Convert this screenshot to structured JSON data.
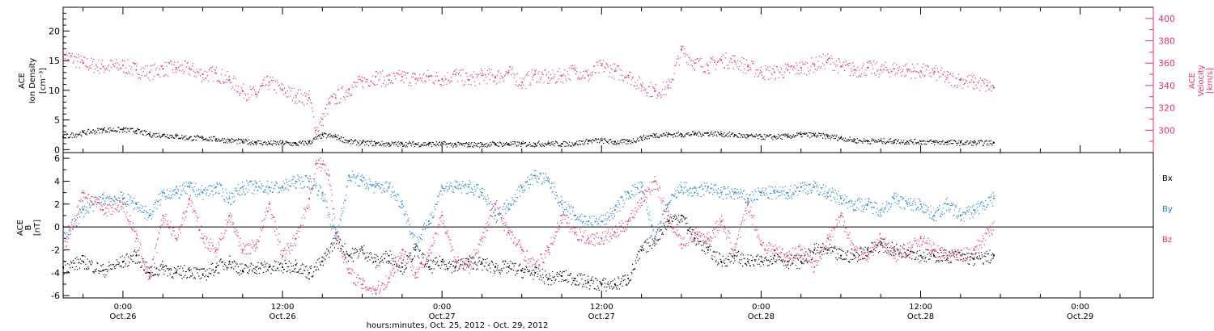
{
  "figure": {
    "xlabel": "hours:minutes, Oct. 25, 2012 - Oct. 29, 2012",
    "time_range_hours": [
      -4.5,
      77.5
    ]
  },
  "x_ticks": [
    {
      "hours": 0,
      "time": "0:00",
      "date": "Oct.26"
    },
    {
      "hours": 12,
      "time": "12:00",
      "date": "Oct.26"
    },
    {
      "hours": 24,
      "time": "0:00",
      "date": "Oct.27"
    },
    {
      "hours": 36,
      "time": "12:00",
      "date": "Oct.27"
    },
    {
      "hours": 48,
      "time": "0:00",
      "date": "Oct.28"
    },
    {
      "hours": 60,
      "time": "12:00",
      "date": "Oct.28"
    },
    {
      "hours": 72,
      "time": "0:00",
      "date": "Oct.29"
    }
  ],
  "chart_data": [
    {
      "type": "scatter",
      "panel": "plasma",
      "ylabel_left": [
        "ACE",
        "Ion Density",
        "[cm⁻³]"
      ],
      "ylabel_right": [
        "ACE",
        "Velocity",
        "[km/s]"
      ],
      "ylim_left": [
        -0.5,
        24
      ],
      "ylim_right": [
        280,
        410
      ],
      "yticks_left": [
        0,
        5,
        10,
        15,
        20
      ],
      "yticks_right": [
        300,
        320,
        340,
        360,
        380,
        400
      ],
      "series": [
        {
          "axis": "right",
          "color": "#e8336b",
          "x": [
            -4.5,
            -3,
            -1.5,
            0,
            1,
            2,
            3,
            4,
            5,
            6,
            7,
            8,
            9,
            10,
            10.5,
            11,
            12,
            13,
            14,
            14.5,
            15,
            15.5,
            16,
            17,
            18,
            19,
            20,
            21,
            22,
            23,
            24,
            25,
            26,
            27,
            28,
            29,
            30,
            31,
            32,
            33,
            34,
            35,
            36,
            37,
            38,
            39,
            40,
            41,
            42,
            43,
            44,
            45,
            46,
            47,
            48,
            49,
            50,
            51,
            52,
            53,
            54,
            55,
            56,
            57,
            58,
            59,
            60,
            61,
            62,
            63,
            64,
            65,
            65.5
          ],
          "y": [
            368,
            360,
            357,
            358,
            354,
            352,
            355,
            356,
            355,
            350,
            351,
            345,
            335,
            332,
            340,
            343,
            336,
            331,
            329,
            300,
            310,
            325,
            329,
            337,
            344,
            348,
            345,
            348,
            346,
            348,
            346,
            350,
            345,
            349,
            348,
            352,
            343,
            350,
            347,
            349,
            354,
            349,
            358,
            353,
            349,
            340,
            335,
            338,
            372,
            360,
            358,
            363,
            362,
            357,
            352,
            352,
            354,
            356,
            359,
            363,
            357,
            354,
            356,
            354,
            355,
            354,
            353,
            352,
            347,
            345,
            343,
            340,
            338
          ]
        },
        {
          "axis": "left",
          "color": "#000000",
          "x": [
            -4.5,
            -3,
            -1.5,
            0,
            1,
            2,
            3,
            4,
            5,
            6,
            7,
            8,
            9,
            10,
            11,
            12,
            13,
            14,
            15,
            16,
            17,
            18,
            19,
            20,
            21,
            22,
            23,
            24,
            25,
            26,
            27,
            28,
            29,
            30,
            31,
            32,
            33,
            34,
            35,
            36,
            37,
            38,
            39,
            40,
            41,
            42,
            43,
            44,
            45,
            46,
            47,
            48,
            49,
            50,
            51,
            52,
            53,
            54,
            55,
            56,
            57,
            58,
            59,
            60,
            61,
            62,
            63,
            64,
            65.5
          ],
          "y": [
            2.2,
            2.9,
            3.4,
            3.4,
            3.2,
            2.6,
            2.5,
            2.3,
            2.0,
            2.0,
            1.8,
            1.6,
            1.4,
            1.3,
            1.1,
            1.2,
            1.0,
            1.3,
            2.5,
            2.2,
            1.4,
            1.2,
            1.1,
            1.0,
            1.0,
            1.0,
            1.0,
            1.0,
            0.9,
            0.9,
            0.9,
            1.0,
            1.0,
            1.0,
            1.0,
            1.1,
            1.0,
            1.1,
            1.5,
            1.6,
            1.3,
            1.4,
            2.0,
            2.5,
            2.6,
            2.6,
            2.7,
            2.8,
            2.7,
            2.5,
            2.3,
            2.2,
            2.2,
            2.3,
            2.6,
            2.5,
            2.3,
            2.0,
            1.6,
            1.5,
            1.5,
            1.5,
            1.4,
            1.4,
            1.3,
            1.3,
            1.2,
            1.2,
            1.2
          ]
        }
      ]
    },
    {
      "type": "scatter",
      "panel": "magnetic",
      "ylabel_left": [
        "ACE",
        "B",
        "[nT]"
      ],
      "ylim": [
        -6.2,
        6.5
      ],
      "yticks": [
        -6,
        -4,
        -2,
        0,
        2,
        4,
        6
      ],
      "zero_line": true,
      "series": [
        {
          "name": "Bx",
          "color": "#000000",
          "x": [
            -4.5,
            -3,
            -1.5,
            0,
            1,
            2,
            3,
            4,
            5,
            6,
            7,
            8,
            9,
            10,
            11,
            12,
            13,
            14,
            15,
            16,
            17,
            18,
            19,
            20,
            21,
            22,
            23,
            24,
            25,
            26,
            27,
            28,
            29,
            30,
            31,
            32,
            33,
            34,
            35,
            36,
            37,
            38,
            39,
            40,
            41,
            42,
            43,
            44,
            45,
            46,
            47,
            48,
            49,
            50,
            51,
            52,
            53,
            54,
            55,
            56,
            57,
            58,
            59,
            60,
            61,
            62,
            63,
            64,
            65.5
          ],
          "y": [
            -3.5,
            -3.0,
            -3.8,
            -3.0,
            -2.5,
            -4.0,
            -3.5,
            -4.0,
            -3.8,
            -4.2,
            -3.5,
            -3.0,
            -3.8,
            -3.5,
            -3.5,
            -3.5,
            -3.3,
            -4.0,
            -3.0,
            -1.0,
            -2.5,
            -2.0,
            -3.0,
            -2.5,
            -3.5,
            -2.0,
            -3.5,
            -3.0,
            -3.5,
            -3.0,
            -3.2,
            -3.5,
            -3.5,
            -3.8,
            -4.0,
            -4.5,
            -4.3,
            -4.5,
            -4.8,
            -5.0,
            -5.0,
            -4.5,
            -2.0,
            -1.0,
            0.5,
            1.0,
            -1.0,
            -2.0,
            -3.0,
            -2.5,
            -3.0,
            -3.0,
            -2.5,
            -3.0,
            -3.0,
            -2.0,
            -2.0,
            -2.5,
            -2.5,
            -2.0,
            -1.5,
            -2.0,
            -2.0,
            -2.5,
            -2.5,
            -2.5,
            -2.5,
            -2.8,
            -2.5
          ]
        },
        {
          "name": "By",
          "color": "#1a7fd9",
          "x": [
            -4.5,
            -3,
            -1.5,
            0,
            1,
            2,
            3,
            4,
            5,
            6,
            7,
            8,
            9,
            10,
            11,
            12,
            13,
            14,
            15,
            16,
            17,
            18,
            19,
            20,
            21,
            22,
            23,
            24,
            25,
            26,
            27,
            28,
            29,
            30,
            31,
            32,
            33,
            34,
            35,
            36,
            37,
            38,
            39,
            40,
            41,
            42,
            43,
            44,
            45,
            46,
            47,
            48,
            49,
            50,
            51,
            52,
            53,
            54,
            55,
            56,
            57,
            58,
            59,
            60,
            61,
            62,
            63,
            64,
            65.5
          ],
          "y": [
            -1.0,
            1.5,
            2.5,
            2.5,
            2.0,
            1.0,
            3.0,
            3.0,
            3.5,
            3.0,
            3.5,
            2.5,
            3.5,
            3.5,
            3.5,
            3.5,
            4.0,
            4.0,
            3.0,
            -1.0,
            4.5,
            4.0,
            3.5,
            3.5,
            2.0,
            -1.5,
            0.5,
            3.5,
            3.5,
            3.5,
            3.0,
            1.0,
            2.0,
            3.5,
            4.5,
            4.0,
            2.0,
            1.0,
            0.5,
            0.5,
            1.5,
            3.0,
            3.5,
            -1.0,
            2.0,
            3.5,
            3.0,
            3.5,
            3.0,
            3.0,
            2.5,
            3.0,
            3.0,
            3.0,
            3.5,
            3.5,
            3.0,
            2.5,
            2.0,
            2.0,
            1.5,
            2.5,
            2.0,
            2.0,
            1.0,
            2.0,
            1.0,
            1.5,
            2.5
          ]
        },
        {
          "name": "Bz",
          "color": "#e8336b",
          "x": [
            -4.5,
            -3,
            -1.5,
            0,
            1,
            2,
            3,
            4,
            5,
            6,
            7,
            8,
            9,
            10,
            11,
            12,
            13,
            14,
            14.5,
            15,
            15.5,
            16,
            17,
            18,
            19,
            20,
            21,
            22,
            23,
            24,
            25,
            26,
            27,
            28,
            29,
            30,
            31,
            32,
            33,
            34,
            35,
            36,
            37,
            38,
            39,
            40,
            41,
            42,
            43,
            44,
            45,
            46,
            47,
            48,
            49,
            50,
            51,
            52,
            53,
            54,
            55,
            56,
            57,
            58,
            59,
            60,
            61,
            62,
            63,
            64,
            65.5
          ],
          "y": [
            -2.0,
            3.0,
            1.5,
            2.0,
            -1.0,
            -4.5,
            1.0,
            -1.0,
            2.5,
            -1.0,
            -2.0,
            1.0,
            -2.0,
            -1.5,
            2.0,
            -2.5,
            -1.0,
            2.5,
            5.5,
            5.5,
            4.5,
            -0.5,
            -4.0,
            -5.0,
            -5.5,
            -4.5,
            -2.0,
            -4.0,
            -2.5,
            1.0,
            -3.0,
            -3.5,
            -1.0,
            2.0,
            -0.5,
            -2.0,
            -3.5,
            -2.0,
            1.0,
            -0.5,
            -1.0,
            -1.0,
            -0.5,
            0.5,
            2.5,
            4.0,
            1.0,
            -1.5,
            -0.5,
            -1.0,
            0.5,
            -2.0,
            2.0,
            -1.5,
            -2.0,
            -2.5,
            -2.0,
            -3.5,
            -1.0,
            1.0,
            -2.0,
            -2.5,
            -1.0,
            -2.5,
            -2.0,
            -1.0,
            -2.0,
            -2.5,
            -2.5,
            -2.0,
            0.0
          ]
        }
      ]
    }
  ]
}
